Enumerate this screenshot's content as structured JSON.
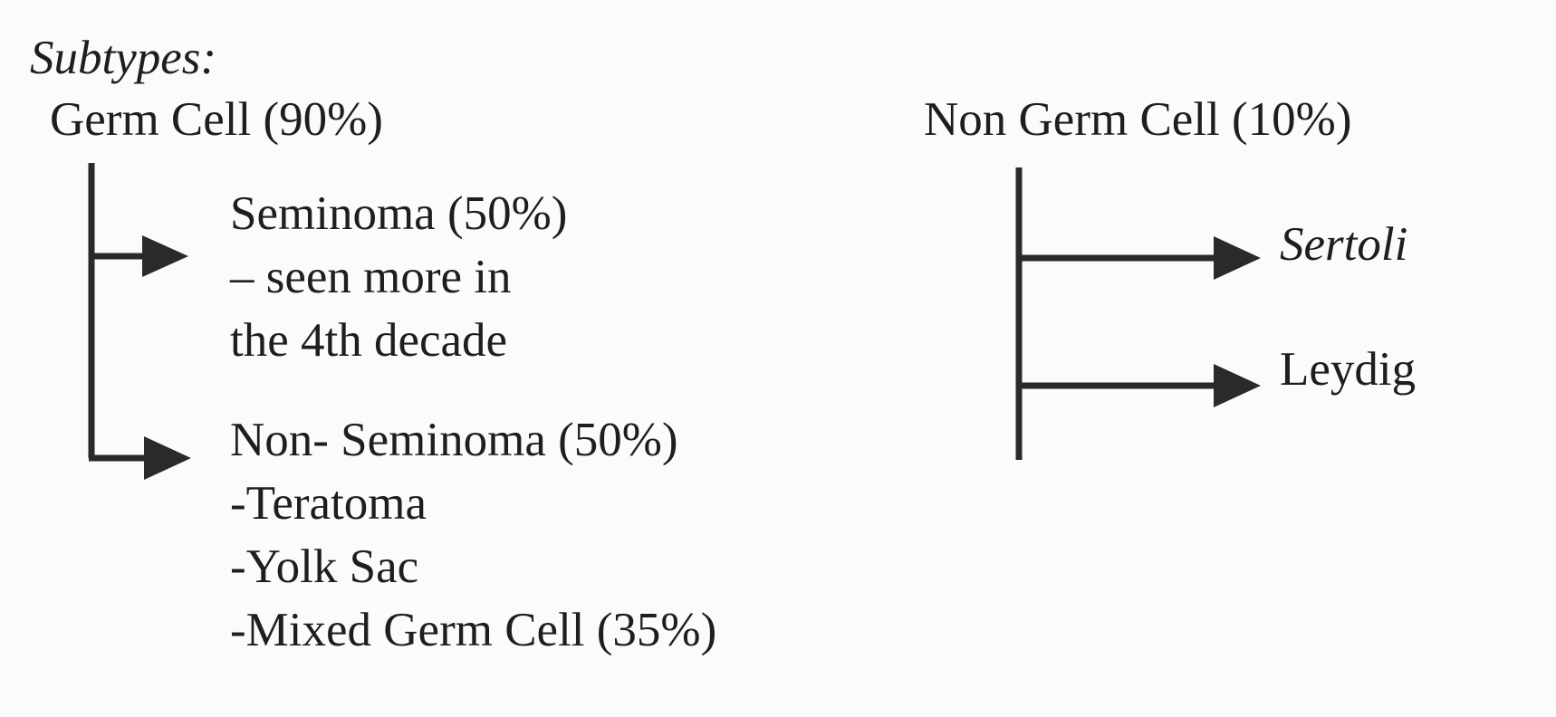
{
  "diagram": {
    "heading": "Subtypes:",
    "germ_cell": {
      "title": "Germ Cell (90%)",
      "seminoma": {
        "lines": [
          "Seminoma (50%)",
          "– seen more in",
          "the 4th decade"
        ]
      },
      "non_seminoma": {
        "lines": [
          "Non- Seminoma (50%)",
          "-Teratoma",
          "-Yolk Sac",
          "-Mixed Germ Cell (35%)"
        ]
      }
    },
    "non_germ_cell": {
      "title": "Non Germ Cell (10%)",
      "sertoli": "Sertoli",
      "leydig": "Leydig"
    }
  }
}
